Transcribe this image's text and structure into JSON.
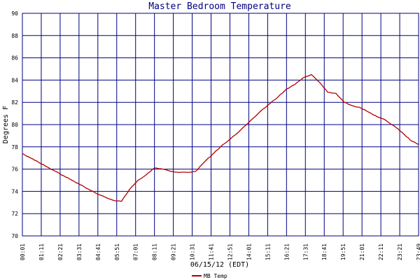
{
  "chart_data": {
    "type": "line",
    "title": "Master Bedroom Temperature",
    "xlabel": "06/15/12 (EDT)",
    "ylabel": "Degrees F",
    "ylim": [
      70,
      90
    ],
    "yticks": [
      "70",
      "72",
      "74",
      "76",
      "78",
      "80",
      "82",
      "84",
      "86",
      "88",
      "90"
    ],
    "xticks": [
      "00:01",
      "01:11",
      "02:21",
      "03:31",
      "04:41",
      "05:51",
      "07:01",
      "08:11",
      "09:21",
      "10:31",
      "11:41",
      "12:51",
      "14:01",
      "15:11",
      "16:21",
      "17:31",
      "18:41",
      "19:51",
      "21:01",
      "22:11",
      "23:21",
      "23:49"
    ],
    "grid": true,
    "legend_position": "bottom-left",
    "colors": {
      "grid": "#000080",
      "series": "#b00000",
      "title": "#000080"
    },
    "series": [
      {
        "name": "MB Temp",
        "x": [
          0,
          0.5,
          1,
          1.5,
          2,
          2.5,
          3,
          3.5,
          4,
          4.5,
          5,
          5.5,
          6,
          6.5,
          7,
          7.5,
          8,
          8.5,
          9,
          9.5,
          10,
          10.5,
          11,
          11.5,
          12,
          12.5,
          13,
          13.5,
          14,
          14.5,
          15,
          15.5,
          16,
          16.5,
          17,
          17.5,
          18,
          18.5,
          19,
          19.5,
          20,
          20.5,
          21,
          21.5,
          22,
          22.5,
          23,
          23.5,
          24
        ],
        "values": [
          77.4,
          77.0,
          76.6,
          76.2,
          75.8,
          75.4,
          75.0,
          74.6,
          74.2,
          73.8,
          73.5,
          73.2,
          73.1,
          74.2,
          75.0,
          75.5,
          76.1,
          76.0,
          75.8,
          75.7,
          75.7,
          75.8,
          76.6,
          77.3,
          78.0,
          78.6,
          79.2,
          79.9,
          80.6,
          81.3,
          81.9,
          82.5,
          83.2,
          83.6,
          84.2,
          84.5,
          83.8,
          82.9,
          82.8,
          82.0,
          81.7,
          81.5,
          81.1,
          80.7,
          80.4,
          79.9,
          79.3,
          78.6,
          78.2
        ]
      }
    ]
  }
}
